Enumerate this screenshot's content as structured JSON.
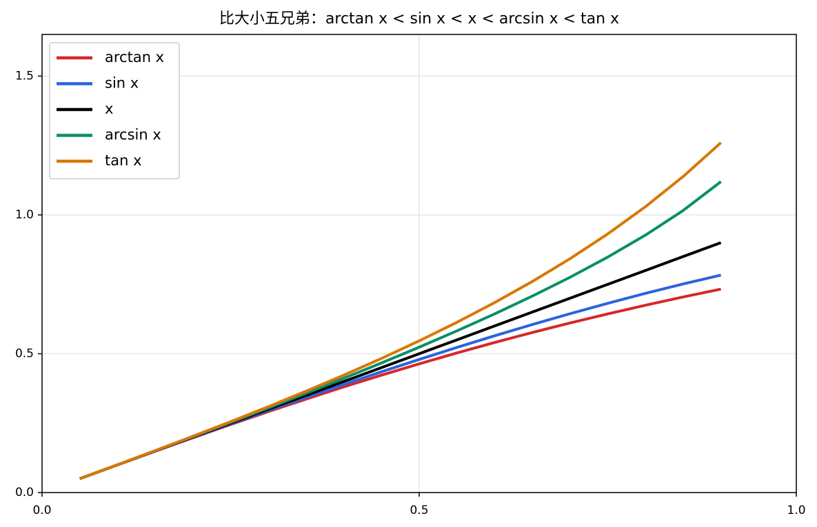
{
  "chart_data": {
    "type": "line",
    "title": "比大小五兄弟：arctan x < sin x < x < arcsin x < tan x",
    "x": [
      0.05,
      0.1,
      0.15,
      0.2,
      0.25,
      0.3,
      0.35,
      0.4,
      0.45,
      0.5,
      0.55,
      0.6,
      0.65,
      0.7,
      0.75,
      0.8,
      0.85,
      0.9
    ],
    "series": [
      {
        "name": "arctan x",
        "color": "#d62728",
        "values": [
          0.05,
          0.0997,
          0.1489,
          0.1974,
          0.245,
          0.2915,
          0.3367,
          0.3805,
          0.4229,
          0.4636,
          0.5028,
          0.5404,
          0.5764,
          0.6107,
          0.6435,
          0.6747,
          0.7045,
          0.7328
        ]
      },
      {
        "name": "sin x",
        "color": "#2b63e0",
        "values": [
          0.05,
          0.0998,
          0.1494,
          0.1987,
          0.2474,
          0.2955,
          0.3429,
          0.3894,
          0.435,
          0.4794,
          0.5227,
          0.5646,
          0.6052,
          0.6442,
          0.6816,
          0.7174,
          0.7513,
          0.7833
        ]
      },
      {
        "name": "x",
        "color": "#000000",
        "values": [
          0.05,
          0.1,
          0.15,
          0.2,
          0.25,
          0.3,
          0.35,
          0.4,
          0.45,
          0.5,
          0.55,
          0.6,
          0.65,
          0.7,
          0.75,
          0.8,
          0.85,
          0.9
        ]
      },
      {
        "name": "arcsin x",
        "color": "#0a8f68",
        "values": [
          0.05,
          0.1002,
          0.1506,
          0.2014,
          0.2527,
          0.3047,
          0.3576,
          0.4115,
          0.4668,
          0.5236,
          0.5824,
          0.6435,
          0.7076,
          0.7754,
          0.8481,
          0.9273,
          1.016,
          1.1198
        ]
      },
      {
        "name": "tan x",
        "color": "#d97706",
        "values": [
          0.05,
          0.1003,
          0.1511,
          0.2027,
          0.2553,
          0.3093,
          0.365,
          0.4228,
          0.4831,
          0.5463,
          0.6131,
          0.6841,
          0.7602,
          0.8423,
          0.9316,
          1.0296,
          1.1383,
          1.2602
        ]
      }
    ],
    "xlim": [
      0,
      1
    ],
    "ylim": [
      0,
      1.65
    ],
    "xticks": [
      {
        "value": 0,
        "label": "0.0"
      },
      0.5,
      {
        "value": 1,
        "label": "1.0"
      }
    ],
    "yticks": [
      {
        "value": 0,
        "label": "0.0"
      },
      0.5,
      {
        "value": 1,
        "label": "1.0"
      },
      1.5
    ],
    "grid": true,
    "legend": "upper-left"
  }
}
